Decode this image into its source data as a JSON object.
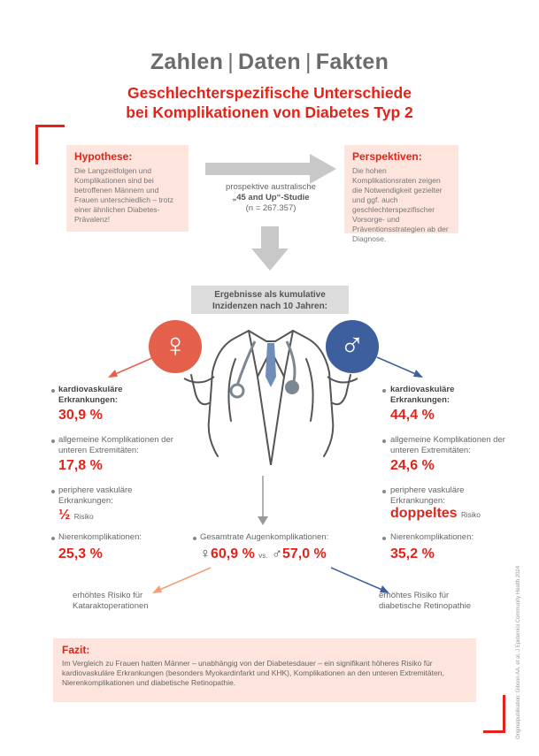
{
  "header": {
    "title_parts": [
      "Zahlen",
      "Daten",
      "Fakten"
    ],
    "subtitle_line1": "Geschlechterspezifische Unterschiede",
    "subtitle_line2": "bei Komplikationen von Diabetes Typ 2"
  },
  "hypothesis": {
    "title": "Hypothese:",
    "text": "Die Langzeitfolgen und Komplikationen sind bei betroffenen Männern und Frauen unterschiedlich – trotz einer ähnlichen Diabetes-Prävalenz!"
  },
  "perspectives": {
    "title": "Perspektiven:",
    "text": "Die hohen Komplikationsraten zeigen die Notwendigkeit gezielter und ggf. auch geschlechterspezifischer Vorsorge- und Präventionsstrategien ab der Diagnose."
  },
  "study": {
    "line1": "prospektive australische",
    "line2": "„45 and Up“-Studie",
    "line3": "(n = 267.357)"
  },
  "results_header": {
    "line1": "Ergebnisse als kumulative",
    "line2": "Inzidenzen nach 10 Jahren:"
  },
  "female": {
    "symbol": "♀",
    "color": "#e4604b",
    "stats": [
      {
        "label": "kardiovaskuläre Erkrankungen:",
        "value": "30,9 %"
      },
      {
        "label": "allgemeine Komplikationen der unteren Extremitäten:",
        "value": "17,8 %"
      },
      {
        "label": "periphere vaskuläre Erkrankungen:",
        "value": "½",
        "suffix": "Risiko"
      },
      {
        "label": "Nierenkomplikationen:",
        "value": "25,3 %"
      }
    ],
    "outcome": "erhöhtes Risiko für Kataraktoperationen"
  },
  "male": {
    "symbol": "♂",
    "color": "#3e5f9d",
    "stats": [
      {
        "label": "kardiovaskuläre Erkrankungen:",
        "value": "44,4 %"
      },
      {
        "label": "allgemeine Komplikationen der unteren Extremitäten:",
        "value": "24,6 %"
      },
      {
        "label": "periphere vaskuläre Erkrankungen:",
        "value": "doppeltes",
        "suffix": "Risiko"
      },
      {
        "label": "Nierenkomplikationen:",
        "value": "35,2 %"
      }
    ],
    "outcome": "erhöhtes Risiko für diabetische Retinopathie"
  },
  "eye": {
    "label": "Gesamtrate Augenkomplikationen:",
    "female_symbol": "♀",
    "female_value": "60,9 %",
    "vs": "vs.",
    "male_symbol": "♂",
    "male_value": "57,0 %"
  },
  "fazit": {
    "title": "Fazit:",
    "text": "Im Vergleich zu Frauen hatten Männer – unabhängig von der Diabetesdauer – ein signifikant höheres Risiko für kardiovaskuläre Erkrankungen (besonders Myokardinfarkt und KHK), Komplikationen an den unteren Extremitäten, Nierenkomplikationen und diabetische Retinopathie."
  },
  "credit": "Originalpublikation: Gibson AA, et al. J Epidemiol Community Health 2024",
  "colors": {
    "accent": "#e2231a",
    "box_bg": "#fde4dc",
    "arrow_gray": "#c8c8c8"
  }
}
